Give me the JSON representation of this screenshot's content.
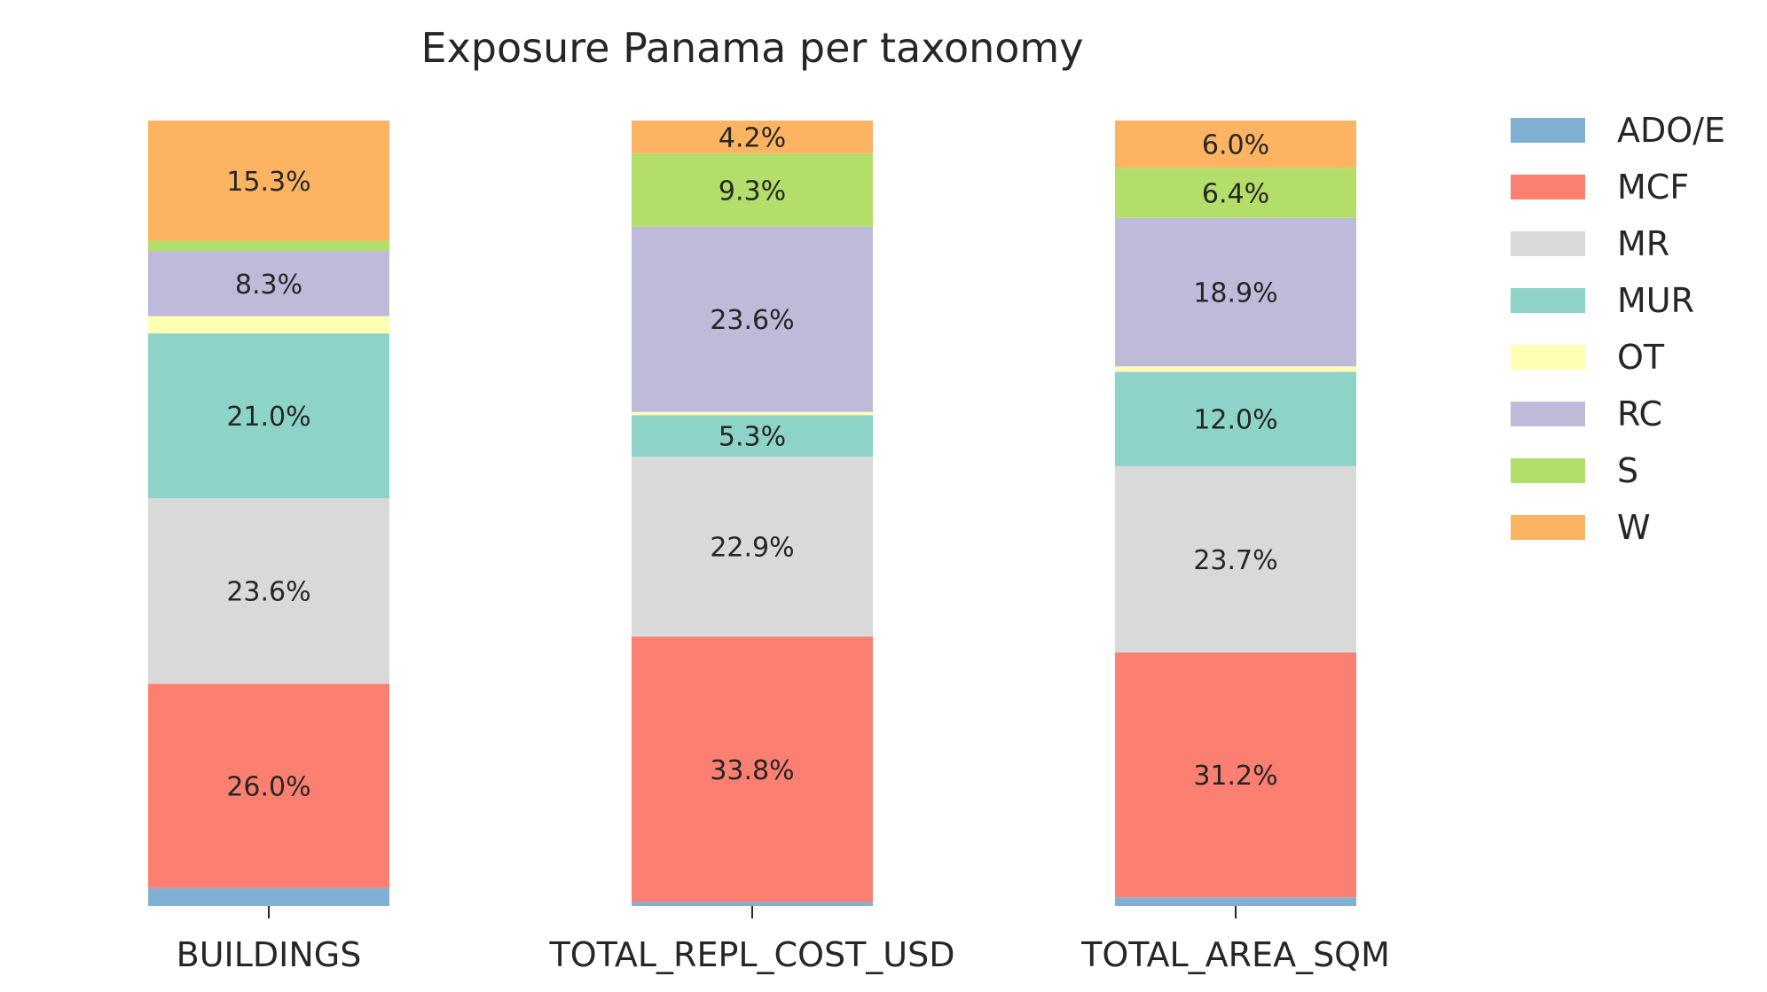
{
  "chart_data": {
    "type": "bar",
    "stacked": true,
    "normalized": true,
    "title": "Exposure Panama per taxonomy",
    "xlabel": "",
    "ylabel": "",
    "ylim": [
      0,
      100
    ],
    "grid": false,
    "legend_position": "right",
    "categories": [
      "BUILDINGS",
      "TOTAL_REPL_COST_USD",
      "TOTAL_AREA_SQM"
    ],
    "series": [
      {
        "name": "ADO/E",
        "color": "#80b1d3",
        "values": [
          2.3,
          0.5,
          1.1
        ],
        "labels": [
          "",
          "",
          ""
        ]
      },
      {
        "name": "MCF",
        "color": "#fb8072",
        "values": [
          26.0,
          33.8,
          31.2
        ],
        "labels": [
          "26.0%",
          "33.8%",
          "31.2%"
        ]
      },
      {
        "name": "MR",
        "color": "#d9d9d9",
        "values": [
          23.6,
          22.9,
          23.7
        ],
        "labels": [
          "23.6%",
          "22.9%",
          "23.7%"
        ]
      },
      {
        "name": "MUR",
        "color": "#8dd3c7",
        "values": [
          21.0,
          5.3,
          12.0
        ],
        "labels": [
          "21.0%",
          "5.3%",
          "12.0%"
        ]
      },
      {
        "name": "OT",
        "color": "#ffffb3",
        "values": [
          2.2,
          0.4,
          0.7
        ],
        "labels": [
          "",
          "",
          ""
        ]
      },
      {
        "name": "RC",
        "color": "#bebada",
        "values": [
          8.3,
          23.6,
          18.9
        ],
        "labels": [
          "8.3%",
          "23.6%",
          "18.9%"
        ]
      },
      {
        "name": "S",
        "color": "#b3de69",
        "values": [
          1.3,
          9.3,
          6.4
        ],
        "labels": [
          "",
          "9.3%",
          "6.4%"
        ]
      },
      {
        "name": "W",
        "color": "#fdb462",
        "values": [
          15.3,
          4.2,
          6.0
        ],
        "labels": [
          "15.3%",
          "4.2%",
          "6.0%"
        ]
      }
    ]
  }
}
